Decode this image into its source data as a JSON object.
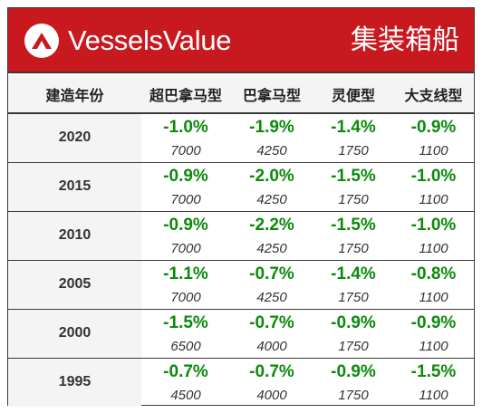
{
  "header": {
    "brand": "VesselsValue",
    "segment": "集装箱船",
    "colors": {
      "banner": "#c8191f",
      "change": "#0b8a0b"
    },
    "logo_icon": "vesselsvalue-logo-icon"
  },
  "table": {
    "columns": [
      "建造年份",
      "超巴拿马型",
      "巴拿马型",
      "灵便型",
      "大支线型"
    ],
    "rows": [
      {
        "year": "2020",
        "cells": [
          {
            "pct": "-1.0%",
            "sub": "7000"
          },
          {
            "pct": "-1.9%",
            "sub": "4250"
          },
          {
            "pct": "-1.4%",
            "sub": "1750"
          },
          {
            "pct": "-0.9%",
            "sub": "1100"
          }
        ]
      },
      {
        "year": "2015",
        "cells": [
          {
            "pct": "-0.9%",
            "sub": "7000"
          },
          {
            "pct": "-2.0%",
            "sub": "4250"
          },
          {
            "pct": "-1.5%",
            "sub": "1750"
          },
          {
            "pct": "-1.0%",
            "sub": "1100"
          }
        ]
      },
      {
        "year": "2010",
        "cells": [
          {
            "pct": "-0.9%",
            "sub": "7000"
          },
          {
            "pct": "-2.2%",
            "sub": "4250"
          },
          {
            "pct": "-1.5%",
            "sub": "1750"
          },
          {
            "pct": "-1.0%",
            "sub": "1100"
          }
        ]
      },
      {
        "year": "2005",
        "cells": [
          {
            "pct": "-1.1%",
            "sub": "7000"
          },
          {
            "pct": "-0.7%",
            "sub": "4250"
          },
          {
            "pct": "-1.4%",
            "sub": "1750"
          },
          {
            "pct": "-0.8%",
            "sub": "1100"
          }
        ]
      },
      {
        "year": "2000",
        "cells": [
          {
            "pct": "-1.5%",
            "sub": "6500"
          },
          {
            "pct": "-0.7%",
            "sub": "4000"
          },
          {
            "pct": "-0.9%",
            "sub": "1750"
          },
          {
            "pct": "-0.9%",
            "sub": "1100"
          }
        ]
      },
      {
        "year": "1995",
        "cells": [
          {
            "pct": "-0.7%",
            "sub": "4500"
          },
          {
            "pct": "-0.7%",
            "sub": "4000"
          },
          {
            "pct": "-0.9%",
            "sub": "1750"
          },
          {
            "pct": "-1.5%",
            "sub": "1100"
          }
        ]
      }
    ]
  }
}
